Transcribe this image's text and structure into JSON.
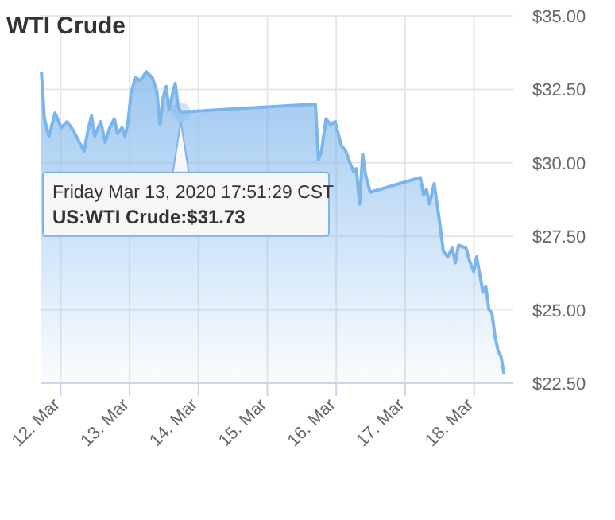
{
  "chart_data": {
    "type": "area",
    "title": "WTI Crude",
    "x": [
      "2020-03-11T17:16",
      "2020-03-11T18:20",
      "2020-03-11T19:55",
      "2020-03-11T22:02",
      "2020-03-12T00:10",
      "2020-03-12T02:17",
      "2020-03-12T04:24",
      "2020-03-12T06:31",
      "2020-03-12T08:07",
      "2020-03-12T09:42",
      "2020-03-12T10:45",
      "2020-03-12T11:49",
      "2020-03-12T13:56",
      "2020-03-12T15:31",
      "2020-03-12T17:07",
      "2020-03-12T18:42",
      "2020-03-12T19:46",
      "2020-03-12T21:21",
      "2020-03-12T22:25",
      "2020-03-12T23:28",
      "2020-03-13T00:32",
      "2020-03-13T02:07",
      "2020-03-13T03:43",
      "2020-03-13T05:50",
      "2020-03-13T07:57",
      "2020-03-13T09:32",
      "2020-03-13T10:35",
      "2020-03-13T11:39",
      "2020-03-13T12:43",
      "2020-03-13T13:46",
      "2020-03-13T14:50",
      "2020-03-13T15:53",
      "2020-03-13T16:57",
      "2020-03-13T17:51",
      "2020-03-15T16:44",
      "2020-03-15T17:48",
      "2020-03-15T18:51",
      "2020-03-15T20:27",
      "2020-03-15T22:00",
      "2020-03-15T23:36",
      "2020-03-16T00:40",
      "2020-03-16T01:42",
      "2020-03-16T03:18",
      "2020-03-16T04:24",
      "2020-03-16T06:00",
      "2020-03-16T07:00",
      "2020-03-16T08:06",
      "2020-03-16T09:12",
      "2020-03-16T10:12",
      "2020-03-16T11:48",
      "2020-03-17T05:18",
      "2020-03-17T06:24",
      "2020-03-17T07:24",
      "2020-03-17T08:30",
      "2020-03-17T10:06",
      "2020-03-17T11:42",
      "2020-03-17T13:18",
      "2020-03-17T14:48",
      "2020-03-17T16:24",
      "2020-03-17T17:30",
      "2020-03-17T18:36",
      "2020-03-17T21:12",
      "2020-03-17T22:18",
      "2020-03-17T23:54",
      "2020-03-18T00:54",
      "2020-03-18T02:00",
      "2020-03-18T03:06",
      "2020-03-18T04:06",
      "2020-03-18T05:12",
      "2020-03-18T06:12",
      "2020-03-18T07:18",
      "2020-03-18T08:24",
      "2020-03-18T09:24",
      "2020-03-18T10:30"
    ],
    "series": [
      {
        "color": "#7cb5ec",
        "values": [
          33.1,
          31.5,
          30.9,
          31.7,
          31.2,
          31.4,
          31.1,
          30.7,
          30.4,
          31.2,
          31.6,
          30.9,
          31.4,
          30.7,
          31.2,
          31.5,
          31.0,
          31.2,
          30.9,
          31.4,
          32.4,
          32.9,
          32.8,
          33.1,
          32.9,
          32.4,
          31.3,
          32.2,
          32.6,
          31.8,
          32.3,
          32.7,
          31.9,
          31.73,
          32.0,
          30.1,
          30.4,
          31.5,
          31.3,
          31.4,
          31.0,
          30.6,
          30.4,
          30.1,
          29.7,
          29.8,
          28.6,
          30.3,
          29.6,
          29.0,
          29.5,
          28.9,
          29.1,
          28.6,
          29.3,
          28.2,
          27.0,
          26.8,
          27.1,
          26.6,
          27.2,
          27.1,
          26.7,
          26.3,
          26.8,
          26.2,
          25.6,
          25.8,
          25.0,
          24.9,
          24.1,
          23.6,
          23.4,
          22.8
        ]
      }
    ],
    "xlim": [
      "2020-03-11T17:15",
      "2020-03-18T13:40"
    ],
    "xticks": [
      {
        "value": "2020-03-12",
        "label": "12. Mar"
      },
      {
        "value": "2020-03-13",
        "label": "13. Mar"
      },
      {
        "value": "2020-03-14",
        "label": "14. Mar"
      },
      {
        "value": "2020-03-15",
        "label": "15. Mar"
      },
      {
        "value": "2020-03-16",
        "label": "16. Mar"
      },
      {
        "value": "2020-03-17",
        "label": "17. Mar"
      },
      {
        "value": "2020-03-18",
        "label": "18. Mar"
      }
    ],
    "ylim": [
      22.5,
      35
    ],
    "yticks": [
      {
        "value": 22.5,
        "label": "$22.50"
      },
      {
        "value": 25,
        "label": "$25.00"
      },
      {
        "value": 27.5,
        "label": "$27.50"
      },
      {
        "value": 30,
        "label": "$30.00"
      },
      {
        "value": 32.5,
        "label": "$32.50"
      },
      {
        "value": 35,
        "label": "$35.00"
      }
    ],
    "grid": true,
    "annotations": [
      {
        "text": "Friday Mar 13, 2020 17:51:29 CST\nUS:WTI Crude:$31.73",
        "x": "2020-03-13T17:51",
        "y": 31.73
      }
    ]
  }
}
